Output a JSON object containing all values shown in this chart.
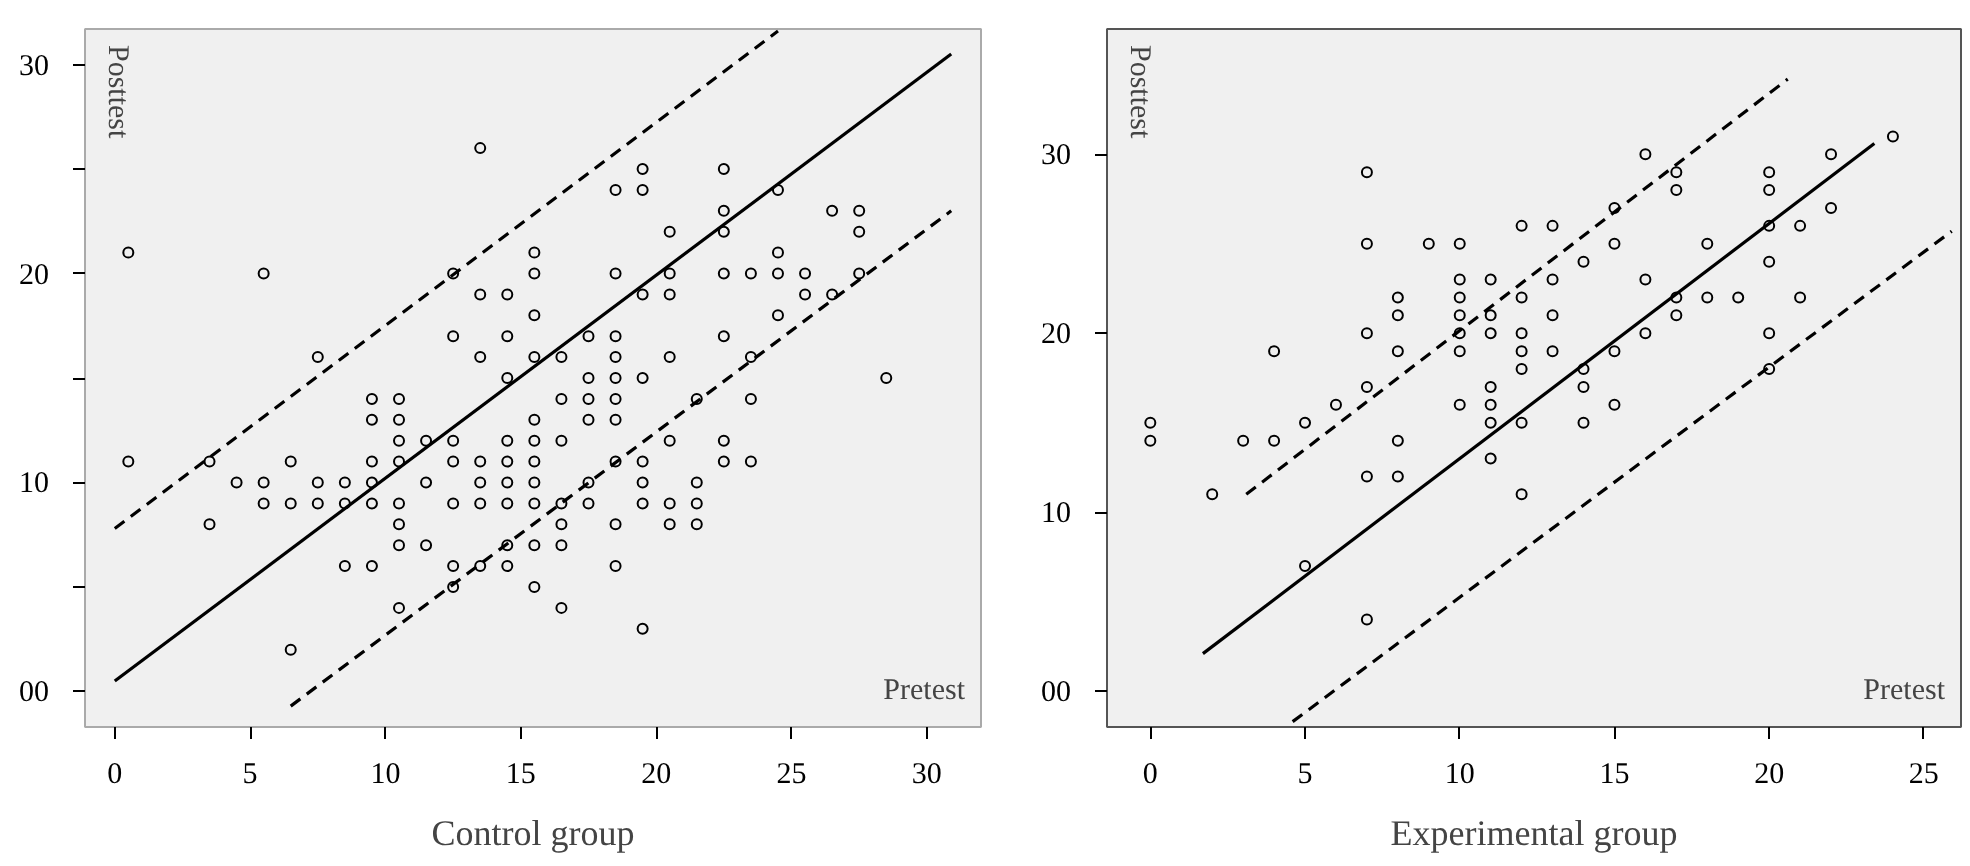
{
  "chart_data": [
    {
      "type": "scatter",
      "xlabel": "Control group",
      "annotations": [
        "Posttest",
        "Pretest"
      ],
      "grid": false,
      "xlim": [
        -1.1,
        32
      ],
      "ylim": [
        -1.7,
        31.7
      ],
      "xticks": [
        0,
        5,
        10,
        15,
        20,
        25,
        30
      ],
      "yticks": [
        {
          "value": 0,
          "label": "00"
        },
        {
          "value": 5,
          "label": null
        },
        10,
        {
          "value": 15,
          "label": null
        },
        20,
        {
          "value": 25,
          "label": null
        },
        30
      ],
      "series": [
        {
          "marker": "circle",
          "color": "#000000",
          "x": [
            0.5,
            0.5,
            3.5,
            3.5,
            4.5,
            5.5,
            5.5,
            5.5,
            6.5,
            6.5,
            6.5,
            7.5,
            7.5,
            7.5,
            8.5,
            8.5,
            8.5,
            9.5,
            9.5,
            9.5,
            9.5,
            9.5,
            9.5,
            10.5,
            10.5,
            10.5,
            10.5,
            10.5,
            10.5,
            10.5,
            10.5,
            11.5,
            11.5,
            11.5,
            12.5,
            12.5,
            12.5,
            12.5,
            12.5,
            12.5,
            12.5,
            13.5,
            13.5,
            13.5,
            13.5,
            13.5,
            13.5,
            13.5,
            14.5,
            14.5,
            14.5,
            14.5,
            14.5,
            14.5,
            14.5,
            14.5,
            14.5,
            15.5,
            15.5,
            15.5,
            15.5,
            15.5,
            15.5,
            15.5,
            15.5,
            15.5,
            15.5,
            15.5,
            16.5,
            16.5,
            16.5,
            16.5,
            16.5,
            16.5,
            16.5,
            17.5,
            17.5,
            17.5,
            17.5,
            17.5,
            17.5,
            18.5,
            18.5,
            18.5,
            18.5,
            18.5,
            18.5,
            18.5,
            18.5,
            18.5,
            18.5,
            19.5,
            19.5,
            19.5,
            19.5,
            19.5,
            19.5,
            19.5,
            19.5,
            20.5,
            20.5,
            20.5,
            20.5,
            20.5,
            20.5,
            20.5,
            21.5,
            21.5,
            21.5,
            21.5,
            22.5,
            22.5,
            22.5,
            22.5,
            22.5,
            22.5,
            22.5,
            23.5,
            23.5,
            23.5,
            23.5,
            24.5,
            24.5,
            24.5,
            24.5,
            25.5,
            25.5,
            26.5,
            26.5,
            27.5,
            27.5,
            27.5,
            28.5
          ],
          "values": [
            21,
            11,
            11,
            8,
            10,
            20,
            10,
            9,
            11,
            9,
            2,
            16,
            10,
            9,
            10,
            9,
            6,
            14,
            13,
            11,
            10,
            9,
            6,
            14,
            13,
            12,
            11,
            9,
            8,
            7,
            4,
            12,
            10,
            7,
            20,
            17,
            12,
            11,
            9,
            6,
            5,
            26,
            19,
            16,
            11,
            10,
            9,
            6,
            19,
            17,
            15,
            12,
            11,
            10,
            9,
            7,
            6,
            21,
            20,
            18,
            16,
            13,
            12,
            11,
            10,
            9,
            7,
            5,
            16,
            14,
            12,
            9,
            8,
            7,
            4,
            17,
            15,
            14,
            13,
            10,
            9,
            24,
            20,
            17,
            16,
            15,
            14,
            13,
            11,
            8,
            6,
            25,
            24,
            19,
            15,
            11,
            10,
            9,
            3,
            22,
            20,
            19,
            16,
            12,
            9,
            8,
            14,
            10,
            9,
            8,
            25,
            23,
            22,
            20,
            17,
            12,
            11,
            20,
            16,
            14,
            11,
            24,
            21,
            20,
            18,
            20,
            19,
            23,
            19,
            23,
            22,
            20,
            15
          ]
        },
        {
          "type": "line",
          "color": "#000000",
          "line_style": "solid",
          "x": [
            0,
            30.9
          ],
          "values": [
            0.5,
            30.5
          ]
        },
        {
          "type": "line",
          "color": "#000000",
          "line_style": "dashed",
          "x": [
            0,
            24.5
          ],
          "values": [
            7.8,
            31.6
          ]
        },
        {
          "type": "line",
          "color": "#000000",
          "line_style": "dashed",
          "x": [
            6.5,
            30.9
          ],
          "values": [
            -0.7,
            23.0
          ]
        }
      ]
    },
    {
      "type": "scatter",
      "xlabel": "Experimental group",
      "annotations": [
        "Posttest",
        "Pretest"
      ],
      "grid": false,
      "xlim": [
        -1.4,
        26.2
      ],
      "ylim": [
        -2,
        37
      ],
      "xticks": [
        0,
        5,
        10,
        15,
        20,
        25
      ],
      "yticks": [
        {
          "value": 0,
          "label": "00"
        },
        10,
        20,
        30
      ],
      "series": [
        {
          "marker": "circle",
          "color": "#000000",
          "x": [
            0,
            0,
            2,
            3,
            4,
            4,
            5,
            5,
            6,
            7,
            7,
            7,
            7,
            7,
            7,
            8,
            8,
            8,
            8,
            8,
            9,
            10,
            10,
            10,
            10,
            10,
            10,
            10,
            11,
            11,
            11,
            11,
            11,
            11,
            11,
            12,
            12,
            12,
            12,
            12,
            12,
            12,
            13,
            13,
            13,
            13,
            14,
            14,
            14,
            14,
            15,
            15,
            15,
            15,
            16,
            16,
            16,
            17,
            17,
            17,
            17,
            18,
            18,
            19,
            20,
            20,
            20,
            20,
            20,
            20,
            21,
            21,
            22,
            22,
            24
          ],
          "values": [
            15,
            14,
            11,
            14,
            19,
            14,
            15,
            7,
            16,
            29,
            25,
            20,
            17,
            12,
            4,
            22,
            21,
            19,
            14,
            12,
            25,
            25,
            23,
            22,
            21,
            20,
            19,
            16,
            23,
            21,
            20,
            17,
            16,
            15,
            13,
            26,
            22,
            20,
            19,
            18,
            15,
            11,
            26,
            23,
            21,
            19,
            24,
            18,
            17,
            15,
            27,
            25,
            19,
            16,
            30,
            23,
            20,
            29,
            28,
            22,
            21,
            25,
            22,
            22,
            29,
            28,
            26,
            24,
            20,
            18,
            26,
            22,
            30,
            27,
            31
          ]
        },
        {
          "type": "line",
          "color": "#000000",
          "line_style": "solid",
          "x": [
            1.7,
            23.4
          ],
          "values": [
            2.1,
            30.6
          ]
        },
        {
          "type": "line",
          "color": "#000000",
          "line_style": "dashed",
          "x": [
            3.1,
            20.6
          ],
          "values": [
            11.0,
            34.2
          ]
        },
        {
          "type": "line",
          "color": "#000000",
          "line_style": "dashed",
          "x": [
            4.6,
            25.9
          ],
          "values": [
            -1.7,
            25.7
          ]
        }
      ]
    }
  ]
}
